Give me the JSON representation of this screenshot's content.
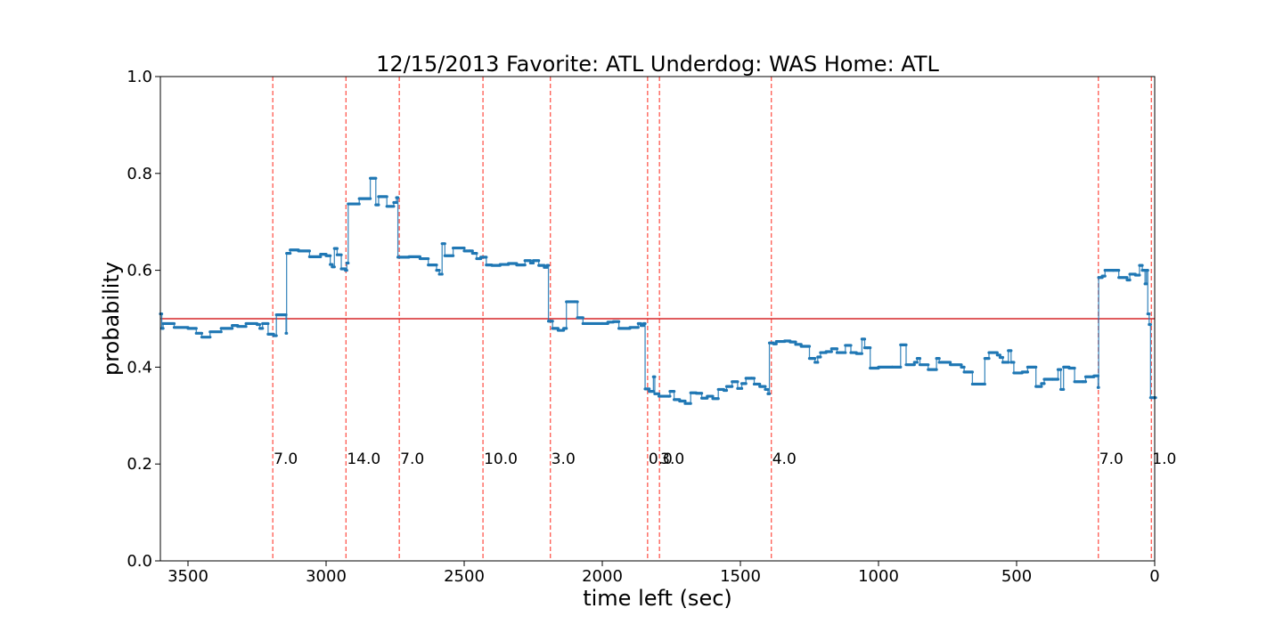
{
  "chart_data": {
    "type": "line",
    "title": "12/15/2013 Favorite: ATL Underdog: WAS Home: ATL",
    "xlabel": "time left (sec)",
    "ylabel": "probability",
    "xlim": [
      3600,
      0
    ],
    "ylim": [
      0.0,
      1.0
    ],
    "x_ticks": [
      3500,
      3000,
      2500,
      2000,
      1500,
      1000,
      500,
      0
    ],
    "y_ticks": [
      0.0,
      0.2,
      0.4,
      0.6,
      0.8,
      1.0
    ],
    "x_tick_labels": [
      "3500",
      "3000",
      "2500",
      "2000",
      "1500",
      "1000",
      "500",
      "0"
    ],
    "y_tick_labels": [
      "0.0",
      "0.2",
      "0.4",
      "0.6",
      "0.8",
      "1.0"
    ],
    "grid": false,
    "reference_line": {
      "y": 0.5,
      "color": "#d62728"
    },
    "series": [
      {
        "color": "#1f77b4",
        "step": true,
        "points": [
          [
            3600,
            0.51
          ],
          [
            3595,
            0.48
          ],
          [
            3590,
            0.49
          ],
          [
            3550,
            0.482
          ],
          [
            3500,
            0.48
          ],
          [
            3470,
            0.47
          ],
          [
            3450,
            0.462
          ],
          [
            3420,
            0.473
          ],
          [
            3380,
            0.48
          ],
          [
            3340,
            0.486
          ],
          [
            3320,
            0.484
          ],
          [
            3290,
            0.49
          ],
          [
            3250,
            0.488
          ],
          [
            3240,
            0.48
          ],
          [
            3230,
            0.49
          ],
          [
            3210,
            0.468
          ],
          [
            3190,
            0.465
          ],
          [
            3180,
            0.508
          ],
          [
            3145,
            0.47
          ],
          [
            3143,
            0.635
          ],
          [
            3130,
            0.642
          ],
          [
            3100,
            0.64
          ],
          [
            3060,
            0.628
          ],
          [
            3020,
            0.633
          ],
          [
            3000,
            0.63
          ],
          [
            2985,
            0.612
          ],
          [
            2978,
            0.607
          ],
          [
            2970,
            0.645
          ],
          [
            2960,
            0.632
          ],
          [
            2945,
            0.603
          ],
          [
            2930,
            0.6
          ],
          [
            2925,
            0.615
          ],
          [
            2920,
            0.737
          ],
          [
            2880,
            0.748
          ],
          [
            2840,
            0.79
          ],
          [
            2820,
            0.735
          ],
          [
            2810,
            0.752
          ],
          [
            2780,
            0.732
          ],
          [
            2755,
            0.74
          ],
          [
            2745,
            0.75
          ],
          [
            2740,
            0.627
          ],
          [
            2700,
            0.628
          ],
          [
            2660,
            0.624
          ],
          [
            2630,
            0.611
          ],
          [
            2600,
            0.6
          ],
          [
            2590,
            0.592
          ],
          [
            2580,
            0.655
          ],
          [
            2570,
            0.63
          ],
          [
            2540,
            0.646
          ],
          [
            2500,
            0.64
          ],
          [
            2480,
            0.64
          ],
          [
            2470,
            0.635
          ],
          [
            2455,
            0.624
          ],
          [
            2440,
            0.627
          ],
          [
            2420,
            0.611
          ],
          [
            2400,
            0.61
          ],
          [
            2370,
            0.612
          ],
          [
            2340,
            0.614
          ],
          [
            2310,
            0.611
          ],
          [
            2280,
            0.62
          ],
          [
            2260,
            0.615
          ],
          [
            2250,
            0.62
          ],
          [
            2230,
            0.61
          ],
          [
            2210,
            0.606
          ],
          [
            2200,
            0.61
          ],
          [
            2195,
            0.495
          ],
          [
            2180,
            0.48
          ],
          [
            2160,
            0.476
          ],
          [
            2140,
            0.48
          ],
          [
            2130,
            0.535
          ],
          [
            2100,
            0.535
          ],
          [
            2090,
            0.502
          ],
          [
            2070,
            0.49
          ],
          [
            2000,
            0.49
          ],
          [
            1980,
            0.493
          ],
          [
            1960,
            0.494
          ],
          [
            1940,
            0.48
          ],
          [
            1900,
            0.482
          ],
          [
            1870,
            0.49
          ],
          [
            1860,
            0.486
          ],
          [
            1850,
            0.49
          ],
          [
            1845,
            0.355
          ],
          [
            1830,
            0.35
          ],
          [
            1815,
            0.38
          ],
          [
            1810,
            0.345
          ],
          [
            1795,
            0.34
          ],
          [
            1760,
            0.34
          ],
          [
            1755,
            0.35
          ],
          [
            1740,
            0.333
          ],
          [
            1720,
            0.33
          ],
          [
            1700,
            0.325
          ],
          [
            1680,
            0.347
          ],
          [
            1660,
            0.346
          ],
          [
            1640,
            0.336
          ],
          [
            1620,
            0.34
          ],
          [
            1600,
            0.335
          ],
          [
            1580,
            0.354
          ],
          [
            1560,
            0.352
          ],
          [
            1550,
            0.36
          ],
          [
            1530,
            0.37
          ],
          [
            1510,
            0.356
          ],
          [
            1495,
            0.366
          ],
          [
            1480,
            0.377
          ],
          [
            1460,
            0.377
          ],
          [
            1450,
            0.365
          ],
          [
            1430,
            0.36
          ],
          [
            1410,
            0.354
          ],
          [
            1400,
            0.345
          ],
          [
            1395,
            0.45
          ],
          [
            1380,
            0.448
          ],
          [
            1370,
            0.453
          ],
          [
            1340,
            0.454
          ],
          [
            1320,
            0.452
          ],
          [
            1300,
            0.447
          ],
          [
            1280,
            0.443
          ],
          [
            1250,
            0.418
          ],
          [
            1230,
            0.41
          ],
          [
            1220,
            0.421
          ],
          [
            1210,
            0.43
          ],
          [
            1190,
            0.432
          ],
          [
            1170,
            0.438
          ],
          [
            1150,
            0.43
          ],
          [
            1120,
            0.445
          ],
          [
            1100,
            0.43
          ],
          [
            1080,
            0.428
          ],
          [
            1060,
            0.458
          ],
          [
            1050,
            0.44
          ],
          [
            1040,
            0.44
          ],
          [
            1030,
            0.398
          ],
          [
            1000,
            0.4
          ],
          [
            950,
            0.4
          ],
          [
            920,
            0.446
          ],
          [
            900,
            0.405
          ],
          [
            870,
            0.41
          ],
          [
            860,
            0.418
          ],
          [
            850,
            0.405
          ],
          [
            820,
            0.395
          ],
          [
            790,
            0.418
          ],
          [
            780,
            0.41
          ],
          [
            740,
            0.405
          ],
          [
            700,
            0.4
          ],
          [
            690,
            0.39
          ],
          [
            660,
            0.365
          ],
          [
            620,
            0.365
          ],
          [
            615,
            0.418
          ],
          [
            600,
            0.43
          ],
          [
            570,
            0.425
          ],
          [
            560,
            0.42
          ],
          [
            550,
            0.41
          ],
          [
            530,
            0.434
          ],
          [
            520,
            0.41
          ],
          [
            510,
            0.388
          ],
          [
            480,
            0.39
          ],
          [
            460,
            0.4
          ],
          [
            430,
            0.36
          ],
          [
            410,
            0.366
          ],
          [
            400,
            0.375
          ],
          [
            370,
            0.375
          ],
          [
            350,
            0.395
          ],
          [
            340,
            0.354
          ],
          [
            330,
            0.4
          ],
          [
            310,
            0.398
          ],
          [
            290,
            0.37
          ],
          [
            260,
            0.37
          ],
          [
            250,
            0.38
          ],
          [
            220,
            0.382
          ],
          [
            205,
            0.358
          ],
          [
            203,
            0.585
          ],
          [
            190,
            0.588
          ],
          [
            180,
            0.6
          ],
          [
            150,
            0.6
          ],
          [
            130,
            0.585
          ],
          [
            100,
            0.58
          ],
          [
            90,
            0.592
          ],
          [
            70,
            0.59
          ],
          [
            55,
            0.61
          ],
          [
            45,
            0.6
          ],
          [
            35,
            0.572
          ],
          [
            30,
            0.6
          ],
          [
            25,
            0.51
          ],
          [
            20,
            0.488
          ],
          [
            15,
            0.337
          ],
          [
            3,
            0.337
          ]
        ]
      }
    ],
    "score_events": [
      {
        "x": 3193,
        "label": "7.0"
      },
      {
        "x": 2928,
        "label": "14.0"
      },
      {
        "x": 2735,
        "label": "7.0"
      },
      {
        "x": 2432,
        "label": "10.0"
      },
      {
        "x": 2188,
        "label": "3.0"
      },
      {
        "x": 1836,
        "label": "0.0"
      },
      {
        "x": 1793,
        "label": "3.0"
      },
      {
        "x": 1388,
        "label": "4.0"
      },
      {
        "x": 204,
        "label": "7.0"
      },
      {
        "x": 12,
        "label": "1.0"
      }
    ]
  }
}
